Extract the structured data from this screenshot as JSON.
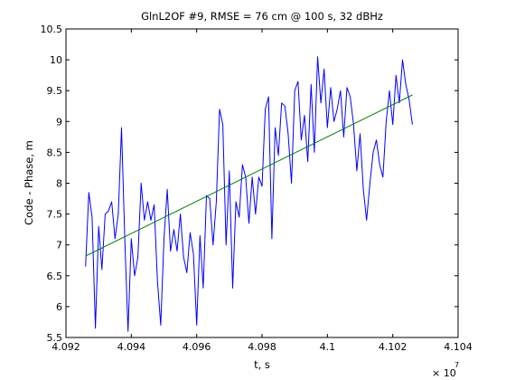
{
  "chart_data": {
    "type": "line",
    "title": "GlnL2OF #9, RMSE = 76 cm @ 100 s, 32 dBHz",
    "xlabel": "t, s",
    "ylabel": "Code - Phase, m",
    "x_exponent_label": "× 10",
    "x_exponent": "7",
    "xlim": [
      4.092,
      4.104
    ],
    "ylim": [
      5.5,
      10.5
    ],
    "grid": false,
    "xticks": [
      4.092,
      4.094,
      4.096,
      4.098,
      4.1,
      4.102,
      4.104
    ],
    "xtick_labels": [
      "4.092",
      "4.094",
      "4.096",
      "4.098",
      "4.1",
      "4.102",
      "4.104"
    ],
    "yticks": [
      5.5,
      6,
      6.5,
      7,
      7.5,
      8,
      8.5,
      9,
      9.5,
      10,
      10.5
    ],
    "ytick_labels": [
      "5.5",
      "6",
      "6.5",
      "7",
      "7.5",
      "8",
      "8.5",
      "9",
      "9.5",
      "10",
      "10.5"
    ],
    "colors": {
      "series": "#0000ff",
      "trend": "#008000",
      "axes": "#000000"
    },
    "series": [
      {
        "color": "#0000ff",
        "x": [
          4.0926,
          4.0927,
          4.0928,
          4.0929,
          4.093,
          4.0931,
          4.0932,
          4.0933,
          4.0934,
          4.0935,
          4.0936,
          4.0937,
          4.0938,
          4.0939,
          4.094,
          4.0941,
          4.0942,
          4.0943,
          4.0944,
          4.0945,
          4.0946,
          4.0947,
          4.0948,
          4.0949,
          4.095,
          4.0951,
          4.0952,
          4.0953,
          4.0954,
          4.0955,
          4.0956,
          4.0957,
          4.0958,
          4.0959,
          4.096,
          4.0961,
          4.0962,
          4.0963,
          4.0964,
          4.0965,
          4.0966,
          4.0967,
          4.0968,
          4.0969,
          4.097,
          4.0971,
          4.0972,
          4.0973,
          4.0974,
          4.0975,
          4.0976,
          4.0977,
          4.0978,
          4.0979,
          4.098,
          4.0981,
          4.0982,
          4.0983,
          4.0984,
          4.0985,
          4.0986,
          4.0987,
          4.0988,
          4.0989,
          4.099,
          4.0991,
          4.0992,
          4.0993,
          4.0994,
          4.0995,
          4.0996,
          4.0997,
          4.0998,
          4.0999,
          4.1,
          4.1001,
          4.1002,
          4.1003,
          4.1004,
          4.1005,
          4.1006,
          4.1007,
          4.1008,
          4.1009,
          4.101,
          4.1011,
          4.1012,
          4.1013,
          4.1014,
          4.1015,
          4.1016,
          4.1017,
          4.1018,
          4.1019,
          4.102,
          4.1021,
          4.1022,
          4.1023,
          4.1024,
          4.1025,
          4.1026
        ],
        "y": [
          6.65,
          7.85,
          7.45,
          5.65,
          7.3,
          6.6,
          7.5,
          7.55,
          7.7,
          7.1,
          7.5,
          8.9,
          7.1,
          5.6,
          7.1,
          6.5,
          6.8,
          8.0,
          7.4,
          7.7,
          7.4,
          7.65,
          6.4,
          5.7,
          7.1,
          7.9,
          6.9,
          7.25,
          6.9,
          7.5,
          6.8,
          6.55,
          7.2,
          6.85,
          5.7,
          7.15,
          6.3,
          7.8,
          7.75,
          7.0,
          7.7,
          9.2,
          8.95,
          7.0,
          8.2,
          6.3,
          7.7,
          7.45,
          8.3,
          8.1,
          7.35,
          8.1,
          7.5,
          8.1,
          7.95,
          9.2,
          9.4,
          7.1,
          8.9,
          8.45,
          9.3,
          9.25,
          8.8,
          8.0,
          9.5,
          9.65,
          8.7,
          9.1,
          8.35,
          9.6,
          8.5,
          10.05,
          9.3,
          9.85,
          8.9,
          9.55,
          9.0,
          9.2,
          9.5,
          8.75,
          9.55,
          9.4,
          8.95,
          8.2,
          8.8,
          7.9,
          7.4,
          8.0,
          8.5,
          8.7,
          8.3,
          8.1,
          9.0,
          9.5,
          8.95,
          9.75,
          9.3,
          10.0,
          9.6,
          9.35,
          8.95
        ]
      },
      {
        "color": "#008000",
        "x": [
          4.0926,
          4.1026
        ],
        "y": [
          6.82,
          9.43
        ]
      }
    ]
  }
}
